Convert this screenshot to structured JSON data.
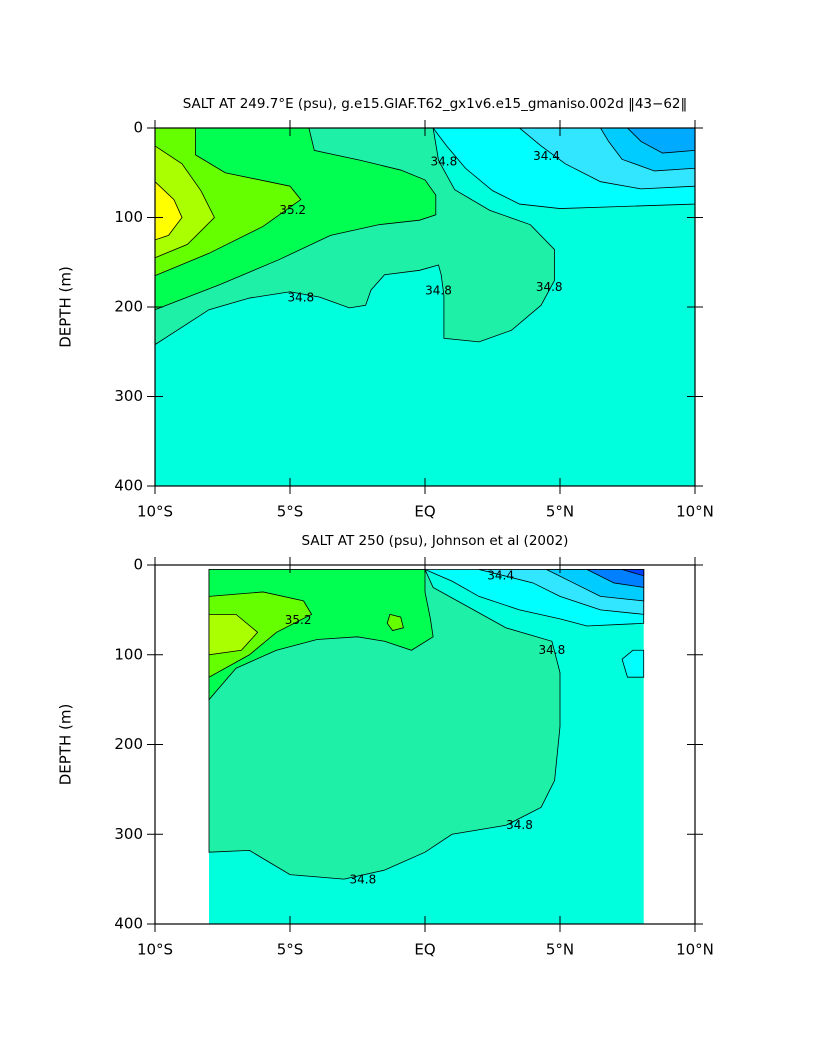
{
  "chart_data": [
    {
      "type": "contour",
      "title": "SALT AT 249.7°E (psu), g.e15.GIAF.T62_gx1v6.e15_gmaniso.002d ‖43−62‖",
      "y_label": "DEPTH (m)",
      "xlim": [
        -10,
        10
      ],
      "xticks": [
        {
          "value": -10,
          "label": "10°S"
        },
        {
          "value": -5,
          "label": "5°S"
        },
        {
          "value": 0,
          "label": "EQ"
        },
        {
          "value": 5,
          "label": "5°N"
        },
        {
          "value": 10,
          "label": "10°N"
        }
      ],
      "ylim": [
        400,
        0
      ],
      "yticks": [
        0,
        100,
        200,
        300,
        400
      ],
      "regions": [
        {
          "level": 34.6,
          "color": "#00ffdc",
          "points": [
            [
              -10,
              0
            ],
            [
              10,
              0
            ],
            [
              10,
              400
            ],
            [
              -10,
              400
            ]
          ]
        },
        {
          "level": 34.8,
          "color": "#1ef0a8",
          "points": [
            [
              -10,
              0
            ],
            [
              0.3,
              0
            ],
            [
              0.5,
              36
            ],
            [
              1.1,
              69
            ],
            [
              2.4,
              92
            ],
            [
              3.9,
              108
            ],
            [
              4.8,
              136
            ],
            [
              4.8,
              170
            ],
            [
              4.3,
              198
            ],
            [
              3.2,
              226
            ],
            [
              2,
              239
            ],
            [
              0.7,
              235
            ],
            [
              0.7,
              215
            ],
            [
              0.7,
              187
            ],
            [
              0.6,
              164
            ],
            [
              0.5,
              153
            ],
            [
              -0.2,
              159
            ],
            [
              -1.5,
              164
            ],
            [
              -2,
              181
            ],
            [
              -2.2,
              198
            ],
            [
              -2.8,
              201
            ],
            [
              -3.9,
              189
            ],
            [
              -5,
              183
            ],
            [
              -6.5,
              190
            ],
            [
              -8,
              203
            ],
            [
              -10,
              242
            ]
          ]
        },
        {
          "level": 35.0,
          "color": "#00ff50",
          "points": [
            [
              -10,
              0
            ],
            [
              -4.3,
              0
            ],
            [
              -4.1,
              25
            ],
            [
              -2.4,
              36
            ],
            [
              -0.9,
              47
            ],
            [
              0,
              58
            ],
            [
              0.4,
              75
            ],
            [
              0.4,
              97
            ],
            [
              -0.2,
              103
            ],
            [
              -1.7,
              108
            ],
            [
              -3.5,
              120
            ],
            [
              -5.4,
              147
            ],
            [
              -7.6,
              175
            ],
            [
              -10,
              203
            ]
          ]
        },
        {
          "level": 35.2,
          "color": "#66ff00",
          "points": [
            [
              -10,
              0
            ],
            [
              -8.5,
              0
            ],
            [
              -8.5,
              30
            ],
            [
              -7.4,
              50
            ],
            [
              -5,
              65
            ],
            [
              -4.6,
              80
            ],
            [
              -6,
              110
            ],
            [
              -8,
              140
            ],
            [
              -10,
              165
            ]
          ]
        },
        {
          "level": 35.4,
          "color": "#aaff00",
          "points": [
            [
              -10,
              20
            ],
            [
              -9,
              40
            ],
            [
              -8.3,
              70
            ],
            [
              -7.8,
              100
            ],
            [
              -8.8,
              130
            ],
            [
              -10,
              145
            ]
          ]
        },
        {
          "level": 35.6,
          "color": "#ffff00",
          "points": [
            [
              -10,
              60
            ],
            [
              -9.3,
              80
            ],
            [
              -9,
              100
            ],
            [
              -9.5,
              120
            ],
            [
              -10,
              125
            ]
          ]
        },
        {
          "level": 34.6,
          "color": "#00ffff",
          "points": [
            [
              0.3,
              0
            ],
            [
              10,
              0
            ],
            [
              10,
              85
            ],
            [
              7,
              88
            ],
            [
              5,
              90
            ],
            [
              3.5,
              85
            ],
            [
              2.5,
              70
            ],
            [
              1.5,
              45
            ],
            [
              0.8,
              20
            ]
          ]
        },
        {
          "level": 34.4,
          "color": "#33e6ff",
          "points": [
            [
              3.5,
              0
            ],
            [
              10,
              0
            ],
            [
              10,
              65
            ],
            [
              8,
              68
            ],
            [
              6.5,
              60
            ],
            [
              5.2,
              40
            ],
            [
              4.3,
              20
            ]
          ]
        },
        {
          "level": 34.2,
          "color": "#00ccff",
          "points": [
            [
              6.5,
              0
            ],
            [
              10,
              0
            ],
            [
              10,
              45
            ],
            [
              8.5,
              48
            ],
            [
              7.3,
              35
            ],
            [
              6.8,
              15
            ]
          ]
        },
        {
          "level": 34.0,
          "color": "#00aaff",
          "points": [
            [
              7.5,
              0
            ],
            [
              10,
              0
            ],
            [
              10,
              25
            ],
            [
              8.8,
              28
            ],
            [
              8,
              15
            ]
          ]
        }
      ],
      "contour_labels": [
        {
          "value": 34.8,
          "x": 0.7,
          "y": 38
        },
        {
          "value": 34.4,
          "x": 4.5,
          "y": 32
        },
        {
          "value": 35.2,
          "x": -4.9,
          "y": 92
        },
        {
          "value": 34.8,
          "x": -4.6,
          "y": 190
        },
        {
          "value": 34.8,
          "x": 0.5,
          "y": 182
        },
        {
          "value": 34.8,
          "x": 4.6,
          "y": 178
        }
      ]
    },
    {
      "type": "contour",
      "title": "SALT AT 250 (psu), Johnson et al (2002)",
      "y_label": "DEPTH (m)",
      "xlim": [
        -10,
        10
      ],
      "xticks": [
        {
          "value": -10,
          "label": "10°S"
        },
        {
          "value": -5,
          "label": "5°S"
        },
        {
          "value": 0,
          "label": "EQ"
        },
        {
          "value": 5,
          "label": "5°N"
        },
        {
          "value": 10,
          "label": "10°N"
        }
      ],
      "ylim": [
        400,
        0
      ],
      "yticks": [
        0,
        100,
        200,
        300,
        400
      ],
      "regions": [
        {
          "level": 34.6,
          "color": "#00ffdc",
          "points": [
            [
              -8,
              5
            ],
            [
              8.1,
              5
            ],
            [
              8.1,
              400
            ],
            [
              -8,
              400
            ]
          ]
        },
        {
          "level": 34.8,
          "color": "#1ef0a8",
          "points": [
            [
              -8,
              5
            ],
            [
              0,
              5
            ],
            [
              0.3,
              25
            ],
            [
              1.5,
              45
            ],
            [
              3,
              70
            ],
            [
              4.7,
              85
            ],
            [
              5,
              120
            ],
            [
              5,
              180
            ],
            [
              4.8,
              240
            ],
            [
              4.3,
              270
            ],
            [
              3,
              290
            ],
            [
              1,
              300
            ],
            [
              0,
              320
            ],
            [
              -1.5,
              340
            ],
            [
              -3,
              350
            ],
            [
              -5,
              345
            ],
            [
              -6.5,
              318
            ],
            [
              -8,
              320
            ]
          ]
        },
        {
          "level": 35.0,
          "color": "#00ff50",
          "points": [
            [
              -8,
              5
            ],
            [
              0,
              5
            ],
            [
              0,
              30
            ],
            [
              0.2,
              60
            ],
            [
              0.3,
              80
            ],
            [
              -0.5,
              95
            ],
            [
              -1.5,
              85
            ],
            [
              -2.5,
              80
            ],
            [
              -4,
              83
            ],
            [
              -5.5,
              95
            ],
            [
              -7,
              115
            ],
            [
              -8,
              150
            ]
          ]
        },
        {
          "level": 35.2,
          "color": "#66ff00",
          "points": [
            [
              -8,
              35
            ],
            [
              -6,
              30
            ],
            [
              -4.5,
              40
            ],
            [
              -4.2,
              55
            ],
            [
              -5.5,
              75
            ],
            [
              -6.5,
              100
            ],
            [
              -8,
              125
            ]
          ]
        },
        {
          "level": 35.4,
          "color": "#aaff00",
          "points": [
            [
              -8,
              55
            ],
            [
              -7,
              55
            ],
            [
              -6.2,
              75
            ],
            [
              -6.8,
              95
            ],
            [
              -8,
              100
            ]
          ]
        },
        {
          "level": 35.2,
          "color": "#66ff00",
          "points": [
            [
              -1.3,
              55
            ],
            [
              -0.9,
              58
            ],
            [
              -0.8,
              70
            ],
            [
              -1.2,
              73
            ],
            [
              -1.4,
              65
            ]
          ]
        },
        {
          "level": 34.6,
          "color": "#00ffff",
          "points": [
            [
              0,
              5
            ],
            [
              8.1,
              5
            ],
            [
              8.1,
              65
            ],
            [
              6,
              68
            ],
            [
              5,
              60
            ],
            [
              3.5,
              50
            ],
            [
              2,
              35
            ],
            [
              1,
              18
            ]
          ]
        },
        {
          "level": 34.4,
          "color": "#33e6ff",
          "points": [
            [
              2,
              5
            ],
            [
              8.1,
              5
            ],
            [
              8.1,
              55
            ],
            [
              6.5,
              50
            ],
            [
              5,
              35
            ],
            [
              4,
              20
            ]
          ]
        },
        {
          "level": 34.2,
          "color": "#00ccff",
          "points": [
            [
              4.5,
              5
            ],
            [
              8.1,
              5
            ],
            [
              8.1,
              40
            ],
            [
              6.5,
              35
            ],
            [
              5.5,
              20
            ]
          ]
        },
        {
          "level": 34.0,
          "color": "#0080ff",
          "points": [
            [
              6,
              5
            ],
            [
              8.1,
              5
            ],
            [
              8.1,
              25
            ],
            [
              7,
              20
            ]
          ]
        },
        {
          "level": 33.8,
          "color": "#0040ff",
          "points": [
            [
              7.3,
              5
            ],
            [
              8.1,
              5
            ],
            [
              8.1,
              12
            ]
          ]
        },
        {
          "level": 34.6,
          "color": "#00ffff",
          "points": [
            [
              7.3,
              105
            ],
            [
              7.7,
              95
            ],
            [
              8.1,
              95
            ],
            [
              8.1,
              125
            ],
            [
              7.5,
              125
            ]
          ]
        }
      ],
      "contour_labels": [
        {
          "value": 35.2,
          "x": -4.7,
          "y": 62
        },
        {
          "value": 34.4,
          "x": 2.8,
          "y": 12
        },
        {
          "value": 34.8,
          "x": 4.7,
          "y": 95
        },
        {
          "value": 34.8,
          "x": 3.5,
          "y": 290
        },
        {
          "value": 34.8,
          "x": -2.3,
          "y": 351
        }
      ]
    }
  ]
}
